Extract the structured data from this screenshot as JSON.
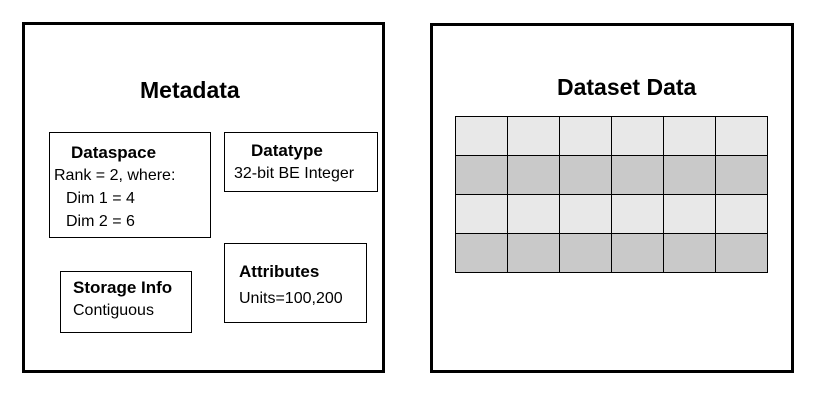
{
  "metadata": {
    "title": "Metadata",
    "dataspace": {
      "title": "Dataspace",
      "rank_line": "Rank = 2, where:",
      "dim1_line": "Dim 1 = 4",
      "dim2_line": "Dim 2 = 6"
    },
    "datatype": {
      "title": "Datatype",
      "value": "32-bit BE Integer"
    },
    "storage": {
      "title": "Storage Info",
      "value": "Contiguous"
    },
    "attributes": {
      "title": "Attributes",
      "value": "Units=100,200"
    }
  },
  "dataset": {
    "title": "Dataset Data",
    "rows": 4,
    "columns": 6,
    "row_shading": [
      "light",
      "dark",
      "light",
      "dark"
    ],
    "colors": {
      "light": "#e8e8e8",
      "dark": "#c9c9c9",
      "border": "#000000"
    }
  }
}
